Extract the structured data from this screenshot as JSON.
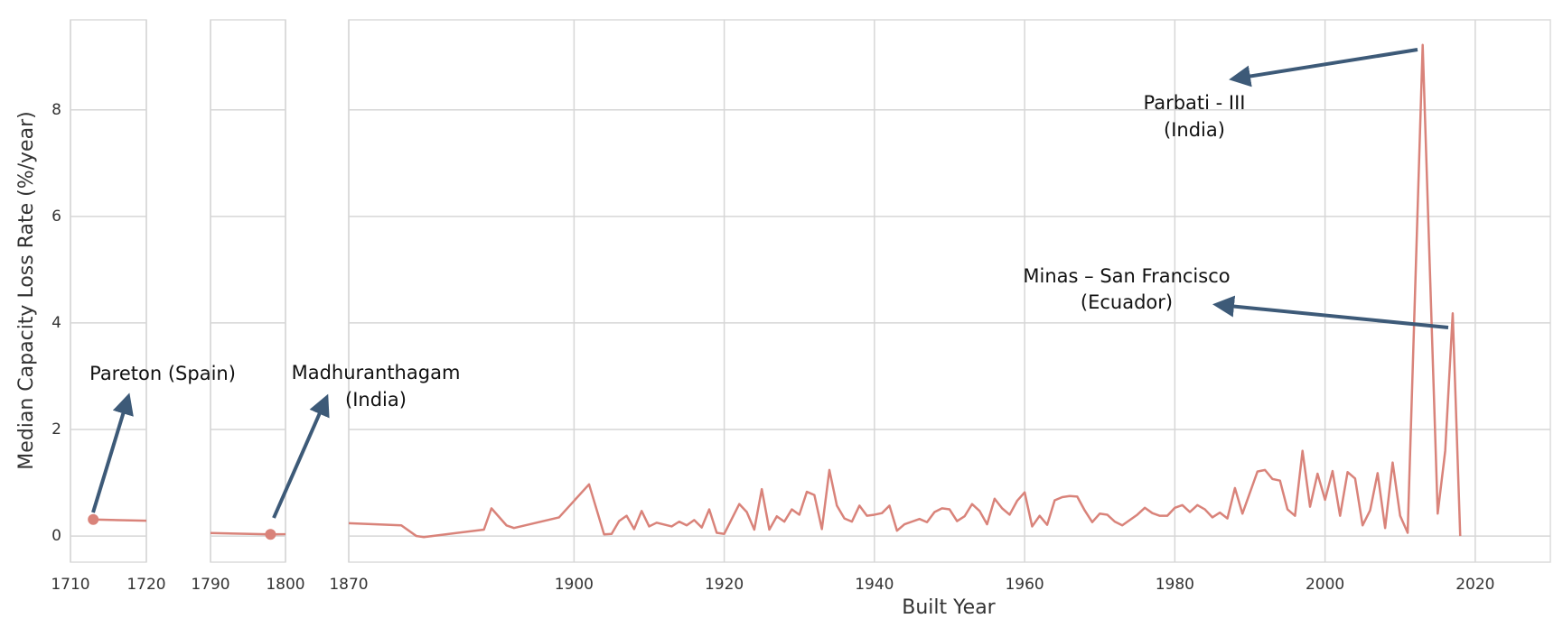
{
  "chart_data": {
    "type": "line",
    "xlabel": "Built Year",
    "ylabel": "Median Capacity Loss Rate (%/year)",
    "color": "#d9837a",
    "grid": true,
    "ylim": [
      -0.49,
      9.69
    ],
    "yticks": [
      0,
      2,
      4,
      6,
      8
    ],
    "panels": [
      {
        "xlim": [
          1710,
          1720
        ],
        "xticks": [
          1710,
          1720
        ]
      },
      {
        "xlim": [
          1790,
          1800
        ],
        "xticks": [
          1790,
          1800
        ]
      },
      {
        "xlim": [
          1870,
          2030
        ],
        "xticks": [
          1870,
          1900,
          1920,
          1940,
          1960,
          1980,
          2000,
          2020
        ]
      }
    ],
    "x": [
      1713,
      1798,
      1870,
      1877,
      1879,
      1880,
      1888,
      1889,
      1891,
      1892,
      1898,
      1902,
      1904,
      1905,
      1906,
      1907,
      1908,
      1909,
      1910,
      1911,
      1913,
      1914,
      1915,
      1916,
      1917,
      1918,
      1919,
      1920,
      1922,
      1923,
      1924,
      1925,
      1926,
      1927,
      1928,
      1929,
      1930,
      1931,
      1932,
      1933,
      1934,
      1935,
      1936,
      1937,
      1938,
      1939,
      1940,
      1941,
      1942,
      1943,
      1944,
      1945,
      1946,
      1947,
      1948,
      1949,
      1950,
      1951,
      1952,
      1953,
      1954,
      1955,
      1956,
      1957,
      1958,
      1959,
      1960,
      1961,
      1962,
      1963,
      1964,
      1965,
      1966,
      1967,
      1968,
      1969,
      1970,
      1971,
      1972,
      1973,
      1975,
      1976,
      1977,
      1978,
      1979,
      1980,
      1981,
      1982,
      1983,
      1984,
      1985,
      1986,
      1987,
      1988,
      1989,
      1991,
      1992,
      1993,
      1994,
      1995,
      1996,
      1997,
      1998,
      1999,
      2000,
      2001,
      2002,
      2003,
      2004,
      2005,
      2006,
      2007,
      2008,
      2009,
      2010,
      2011,
      2013,
      2015,
      2016,
      2017,
      2018
    ],
    "values": [
      0.31,
      0.03,
      0.24,
      0.2,
      0.0,
      -0.02,
      0.12,
      0.52,
      0.2,
      0.15,
      0.35,
      0.97,
      0.03,
      0.04,
      0.28,
      0.38,
      0.13,
      0.47,
      0.18,
      0.25,
      0.18,
      0.27,
      0.2,
      0.3,
      0.16,
      0.5,
      0.06,
      0.04,
      0.6,
      0.45,
      0.12,
      0.88,
      0.12,
      0.37,
      0.27,
      0.5,
      0.4,
      0.83,
      0.77,
      0.13,
      1.24,
      0.57,
      0.33,
      0.27,
      0.57,
      0.38,
      0.4,
      0.43,
      0.57,
      0.1,
      0.22,
      0.27,
      0.32,
      0.26,
      0.45,
      0.52,
      0.5,
      0.28,
      0.37,
      0.6,
      0.47,
      0.22,
      0.7,
      0.52,
      0.4,
      0.66,
      0.82,
      0.18,
      0.38,
      0.21,
      0.67,
      0.73,
      0.75,
      0.74,
      0.48,
      0.26,
      0.42,
      0.4,
      0.27,
      0.2,
      0.4,
      0.53,
      0.43,
      0.38,
      0.38,
      0.53,
      0.58,
      0.45,
      0.58,
      0.5,
      0.35,
      0.44,
      0.33,
      0.9,
      0.42,
      1.21,
      1.24,
      1.07,
      1.04,
      0.5,
      0.38,
      1.6,
      0.55,
      1.17,
      0.68,
      1.22,
      0.38,
      1.2,
      1.08,
      0.2,
      0.48,
      1.18,
      0.15,
      1.38,
      0.38,
      0.06,
      9.22,
      0.42,
      1.6,
      4.18,
      0.0
    ],
    "annotations": [
      {
        "text": [
          "Pareton (Spain)"
        ]
      },
      {
        "text": [
          "Madhuranthagam",
          "(India)"
        ]
      },
      {
        "text": [
          "Parbati - III",
          "(India)"
        ]
      },
      {
        "text": [
          "Minas – San Francisco",
          "(Ecuador)"
        ]
      }
    ]
  }
}
